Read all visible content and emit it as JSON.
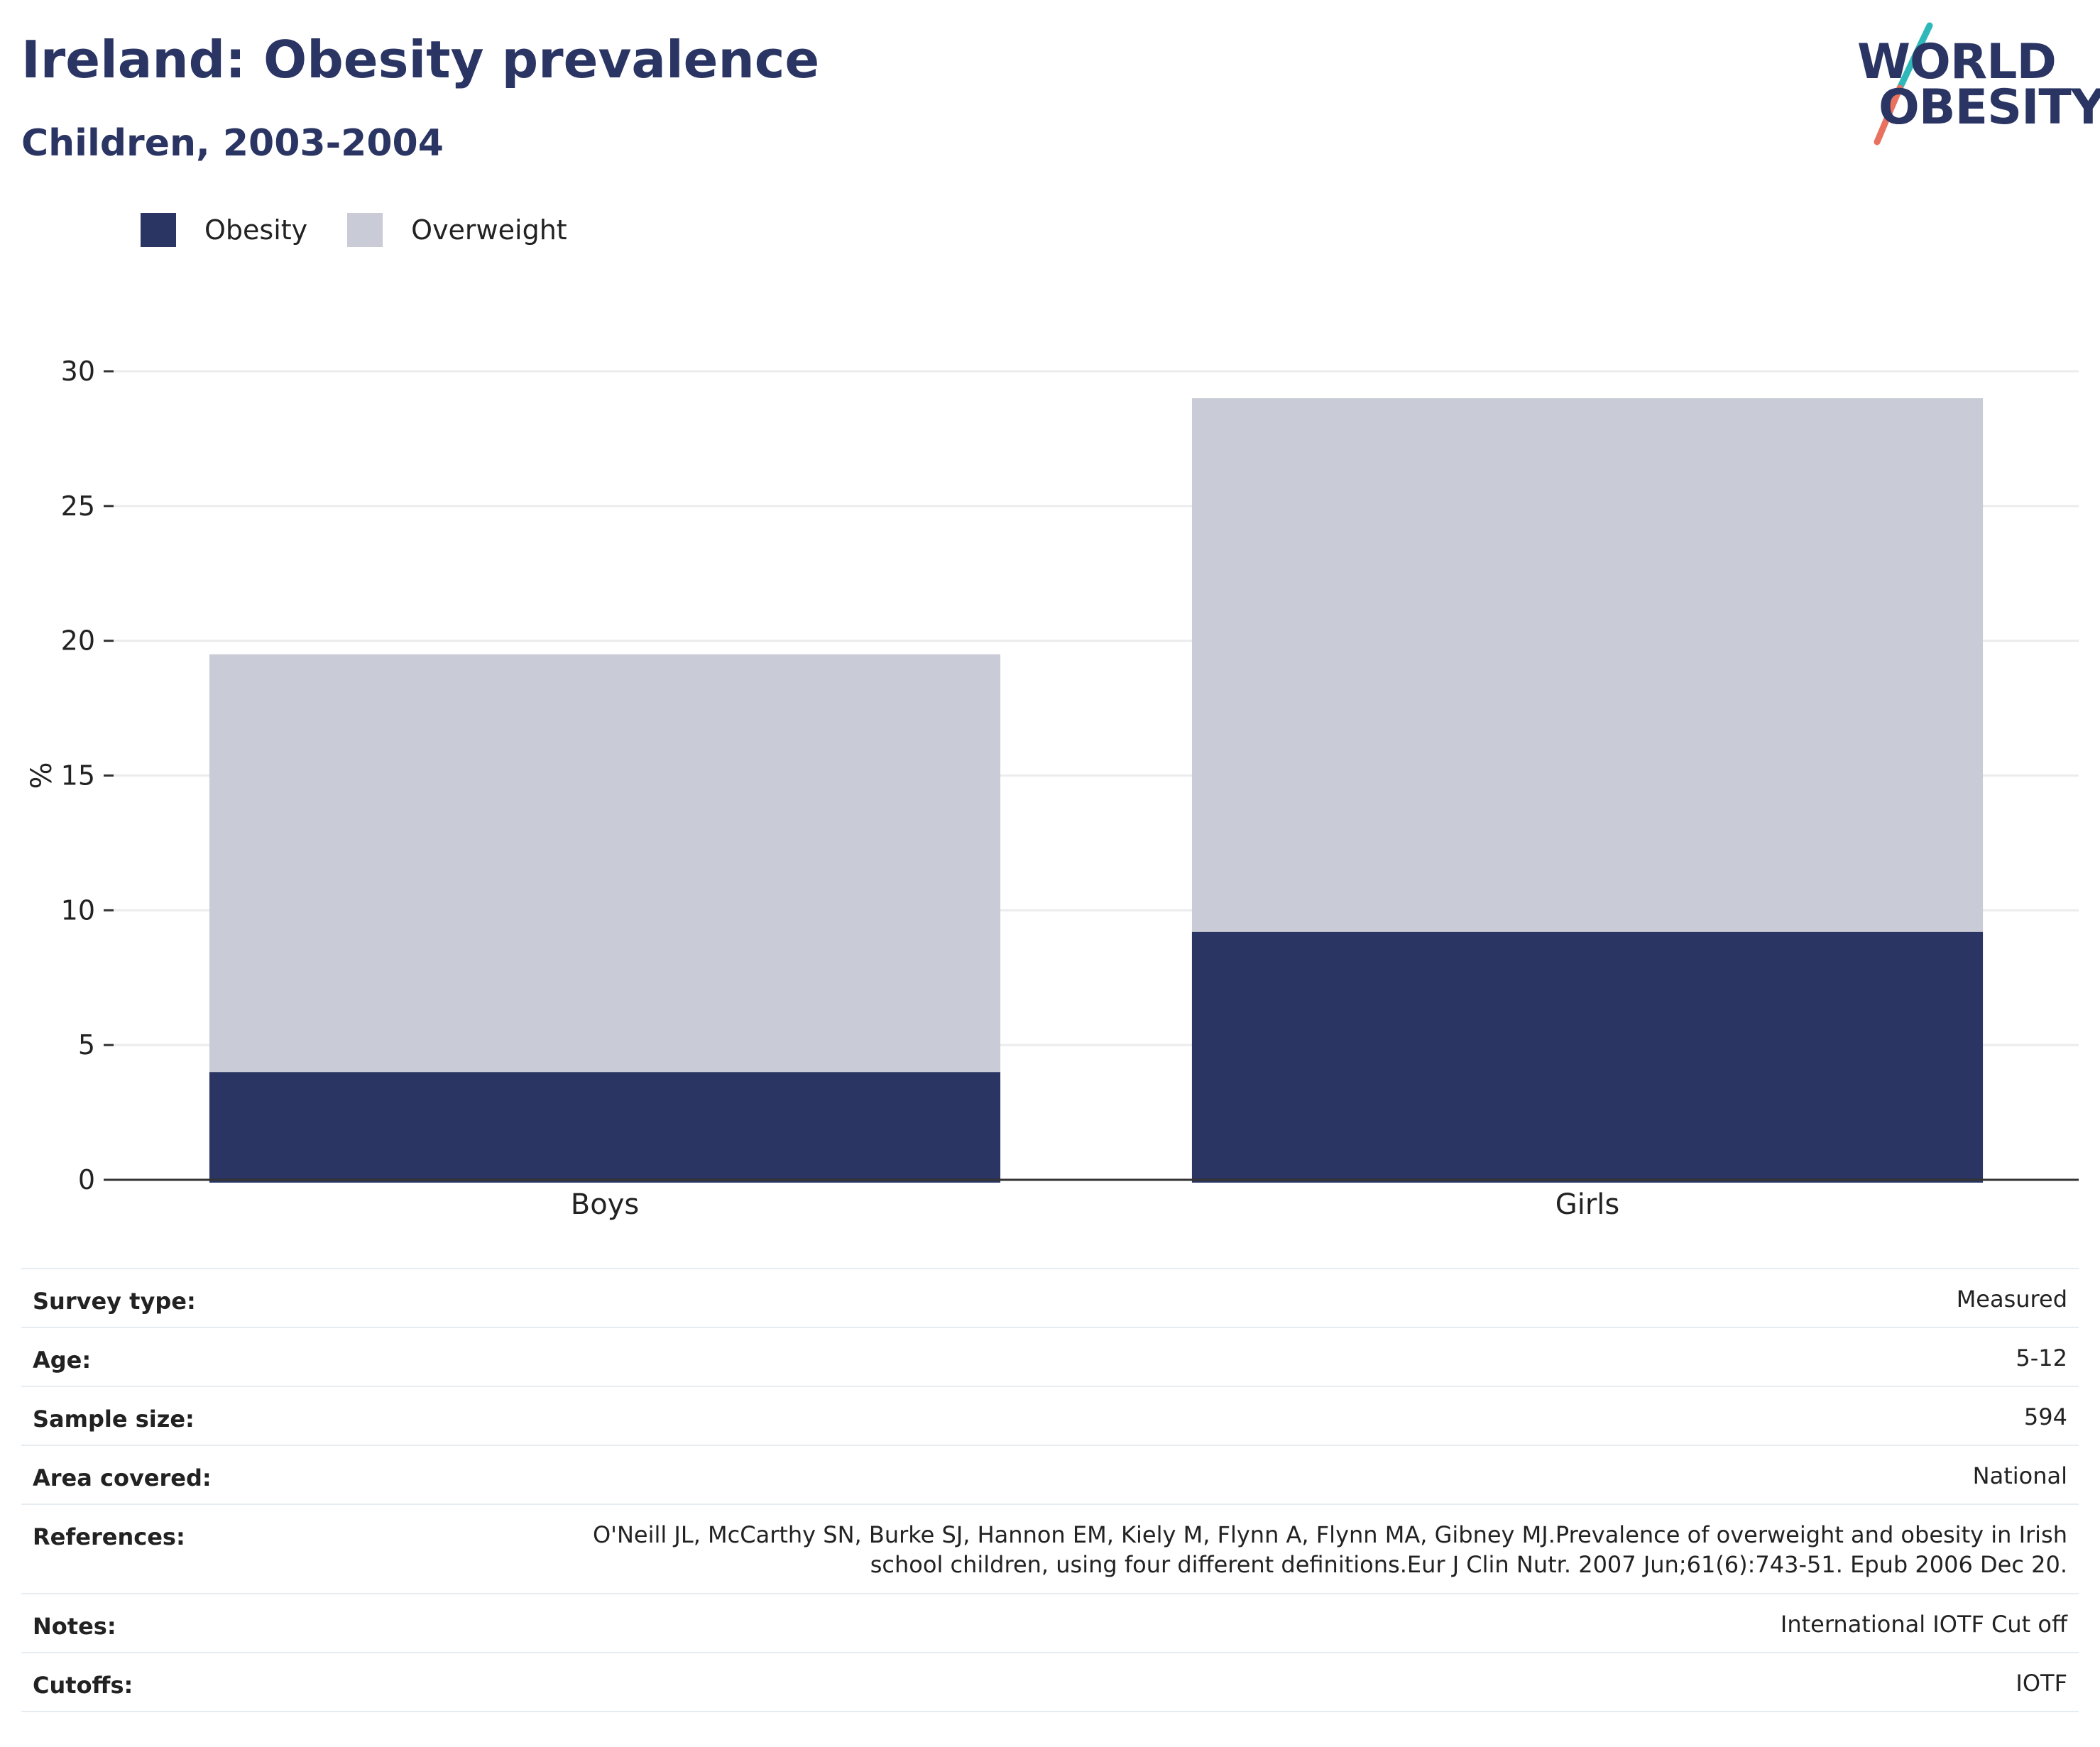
{
  "header": {
    "title": "Ireland: Obesity prevalence",
    "subtitle": "Children, 2003-2004"
  },
  "logo": {
    "line1": "WORLD",
    "line2": "OBESITY",
    "colors": {
      "text": "#2a3563",
      "slash_top": "#2fb8b9",
      "slash_bottom": "#e8725f"
    }
  },
  "colors": {
    "obesity": "#2a3563",
    "overweight": "#c9cbd7",
    "grid": "#ececec",
    "axis": "#333333"
  },
  "chart_data": {
    "type": "bar",
    "stacked": true,
    "categories": [
      "Boys",
      "Girls"
    ],
    "series": [
      {
        "name": "Obesity",
        "values": [
          4.0,
          9.2
        ]
      },
      {
        "name": "Overweight",
        "values": [
          15.5,
          19.8
        ]
      }
    ],
    "ylabel": "%",
    "xlabel": "",
    "ylim": [
      0,
      30
    ],
    "yticks": [
      0,
      5,
      10,
      15,
      20,
      25,
      30
    ],
    "grid": true,
    "legend": "top-left"
  },
  "metadata": [
    {
      "key": "Survey type:",
      "value": "Measured"
    },
    {
      "key": "Age:",
      "value": "5-12"
    },
    {
      "key": "Sample size:",
      "value": "594"
    },
    {
      "key": "Area covered:",
      "value": "National"
    },
    {
      "key": "References:",
      "value": "O'Neill JL, McCarthy SN, Burke SJ, Hannon EM, Kiely M, Flynn A, Flynn MA, Gibney MJ.Prevalence of overweight and obesity in Irish\nschool children, using four different definitions.Eur J Clin Nutr. 2007 Jun;61(6):743-51. Epub 2006 Dec 20."
    },
    {
      "key": "Notes:",
      "value": "International IOTF Cut off"
    },
    {
      "key": "Cutoffs:",
      "value": "IOTF"
    }
  ]
}
